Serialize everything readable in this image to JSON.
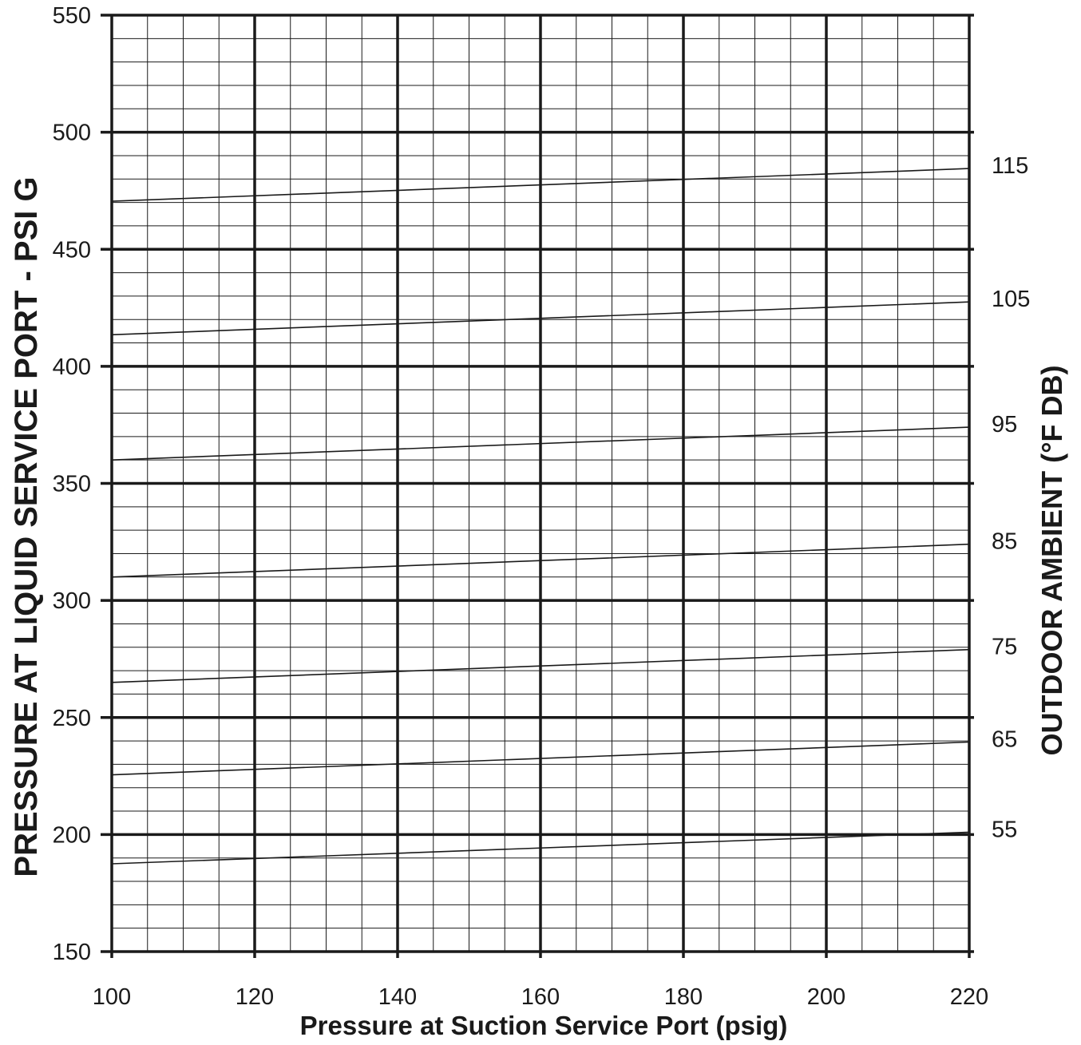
{
  "chart_data": {
    "type": "line",
    "title": "",
    "xlabel": "Pressure at Suction Service Port (psig)",
    "ylabel": "PRESSURE AT LIQUID SERVICE PORT - PSI G",
    "y2label": "OUTDOOR AMBIENT (°F DB)",
    "xlim": [
      100,
      220
    ],
    "ylim": [
      150,
      550
    ],
    "x_ticks": [
      "100",
      "120",
      "140",
      "160",
      "180",
      "200",
      "220"
    ],
    "y_ticks": [
      "150",
      "200",
      "250",
      "300",
      "350",
      "400",
      "450",
      "500",
      "550"
    ],
    "x_major_step": 20,
    "x_minor_step": 5,
    "y_major_step": 50,
    "y_minor_step": 10,
    "grid": true,
    "x": [
      100,
      220
    ],
    "series": [
      {
        "name": "55",
        "values": [
          187.5,
          201
        ]
      },
      {
        "name": "65",
        "values": [
          225.5,
          239.5
        ]
      },
      {
        "name": "75",
        "values": [
          265,
          279
        ]
      },
      {
        "name": "85",
        "values": [
          310,
          324
        ]
      },
      {
        "name": "95",
        "values": [
          360,
          374
        ]
      },
      {
        "name": "105",
        "values": [
          413.5,
          427.5
        ]
      },
      {
        "name": "115",
        "values": [
          470.5,
          484.5
        ]
      }
    ]
  },
  "colors": {
    "line": "#1a1a1a",
    "grid": "#1a1a1a",
    "background": "#ffffff"
  }
}
